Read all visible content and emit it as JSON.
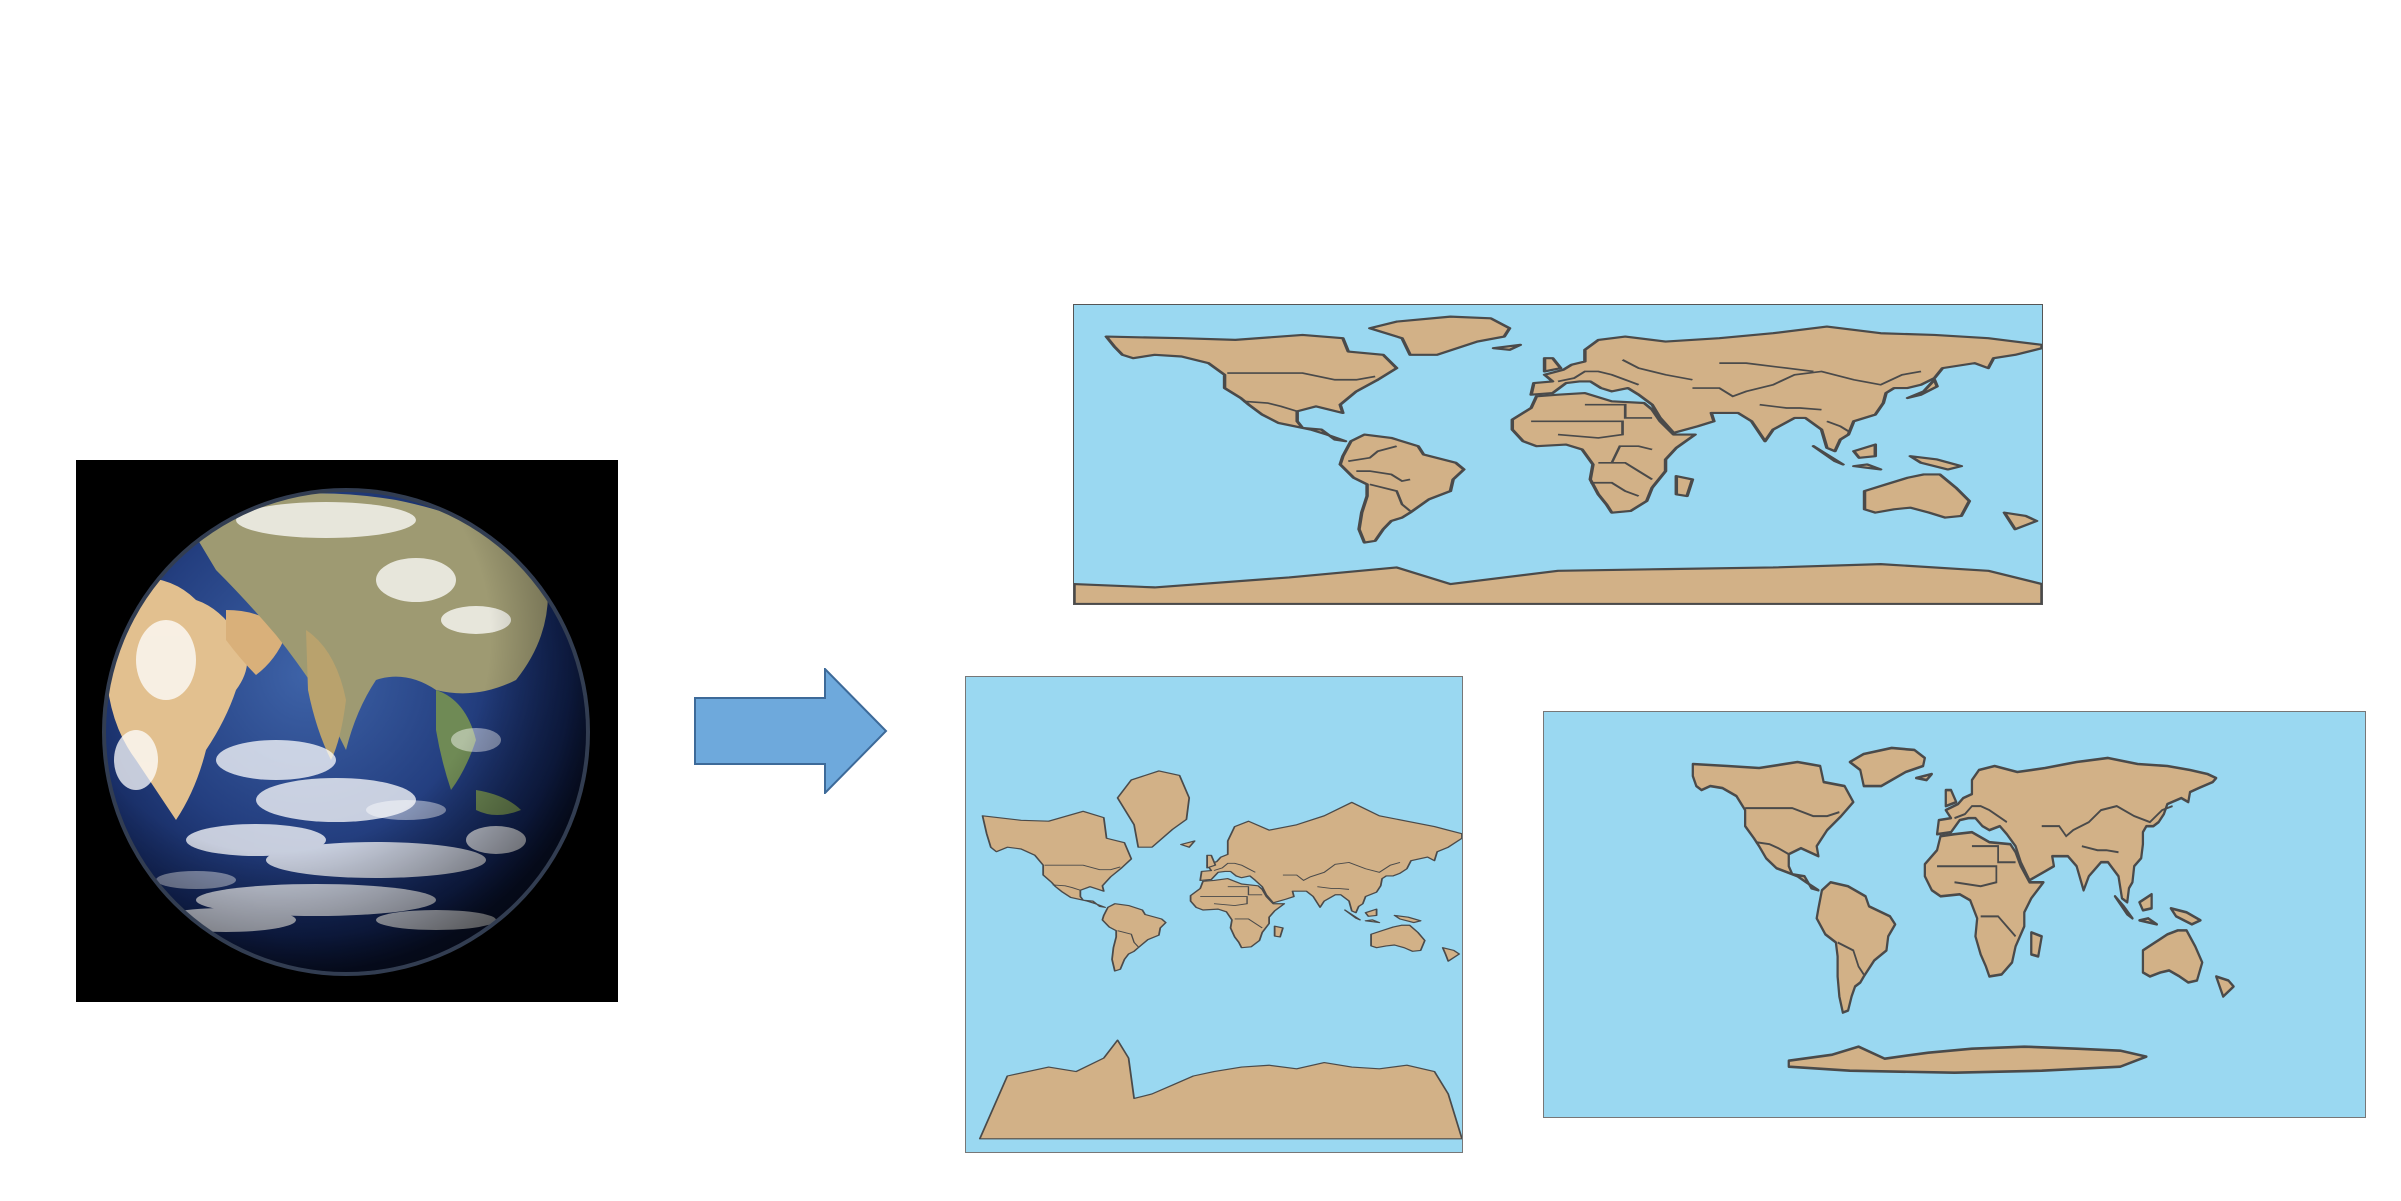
{
  "colors": {
    "ocean": "#9ad8f1",
    "land": "#d2b187",
    "arrow_fill": "#6ea9dc",
    "arrow_stroke": "#3d6a99",
    "globe_background": "#000000"
  },
  "figure": {
    "source": {
      "kind": "photo",
      "subject": "earth-globe"
    },
    "arrow": {
      "icon": "right-arrow-icon"
    },
    "projections": [
      {
        "id": "equirectangular"
      },
      {
        "id": "mercator"
      },
      {
        "id": "robinson"
      }
    ]
  }
}
